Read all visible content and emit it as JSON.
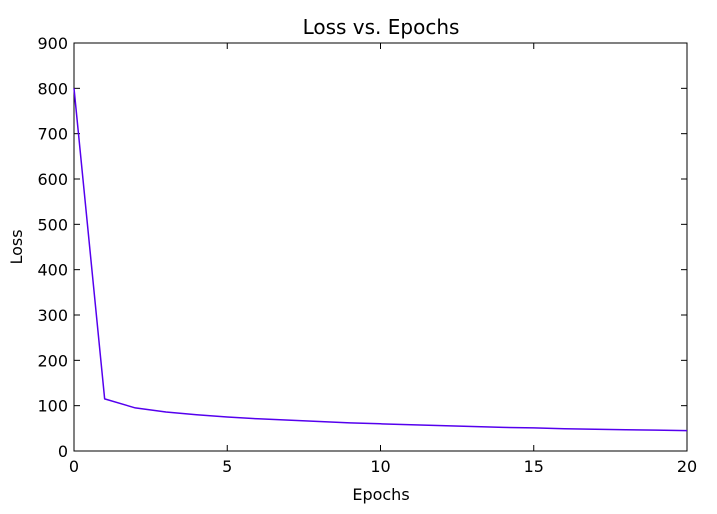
{
  "chart_data": {
    "type": "line",
    "title": "Loss vs. Epochs",
    "xlabel": "Epochs",
    "ylabel": "Loss",
    "xlim": [
      0,
      20
    ],
    "ylim": [
      0,
      900
    ],
    "xticks": [
      0,
      5,
      10,
      15,
      20
    ],
    "yticks": [
      0,
      100,
      200,
      300,
      400,
      500,
      600,
      700,
      800,
      900
    ],
    "grid": false,
    "series": [
      {
        "color": "#5500ee",
        "x": [
          0,
          1,
          2,
          3,
          4,
          5,
          6,
          7,
          8,
          9,
          10,
          11,
          12,
          13,
          14,
          15,
          16,
          17,
          18,
          19,
          20
        ],
        "y": [
          800,
          115,
          95,
          86,
          80,
          75,
          71,
          68,
          65,
          62,
          60,
          58,
          56,
          54,
          52,
          51,
          49,
          48,
          47,
          46,
          45
        ]
      }
    ]
  }
}
